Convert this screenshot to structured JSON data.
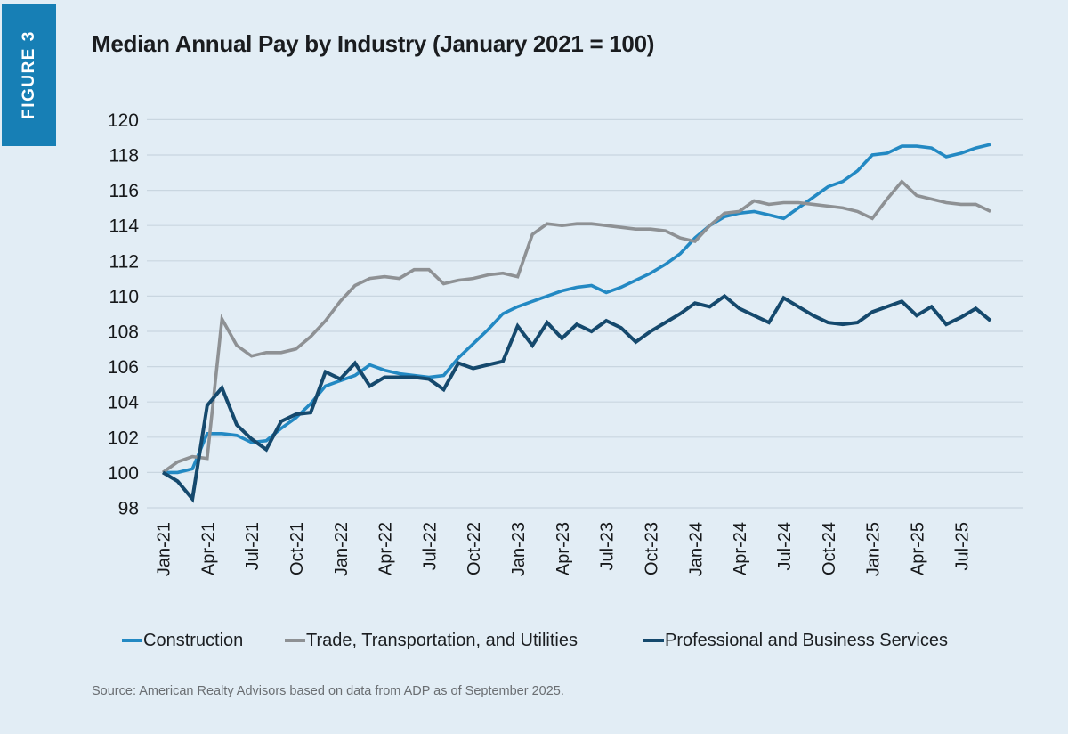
{
  "figure_label": "FIGURE 3",
  "title": "Median Annual Pay by Industry (January 2021 = 100)",
  "source": "Source: American Realty Advisors based on data from ADP as of September 2025.",
  "colors": {
    "background": "#e2edf5",
    "figure_badge": "#177fb5",
    "gridline": "#c9d6e0",
    "axis_text": "#17191b",
    "construction": "#2389c3",
    "trade": "#8e9194",
    "professional": "#15496d"
  },
  "chart_data": {
    "type": "line",
    "title": "Median Annual Pay by Industry (January 2021 = 100)",
    "xlabel": "",
    "ylabel": "",
    "ylim": [
      98,
      120
    ],
    "grid": true,
    "legend_position": "bottom",
    "y_ticks": [
      120,
      118,
      116,
      114,
      112,
      110,
      108,
      106,
      104,
      102,
      100,
      98
    ],
    "x_tick_labels": [
      "Jan-21",
      "Apr-21",
      "Jul-21",
      "Oct-21",
      "Jan-22",
      "Apr-22",
      "Jul-22",
      "Oct-22",
      "Jan-23",
      "Apr-23",
      "Jul-23",
      "Oct-23",
      "Jan-24",
      "Apr-24",
      "Jul-24",
      "Oct-24",
      "Jan-25",
      "Apr-25",
      "Jul-25"
    ],
    "x": [
      "Jan-21",
      "Feb-21",
      "Mar-21",
      "Apr-21",
      "May-21",
      "Jun-21",
      "Jul-21",
      "Aug-21",
      "Sep-21",
      "Oct-21",
      "Nov-21",
      "Dec-21",
      "Jan-22",
      "Feb-22",
      "Mar-22",
      "Apr-22",
      "May-22",
      "Jun-22",
      "Jul-22",
      "Aug-22",
      "Sep-22",
      "Oct-22",
      "Nov-22",
      "Dec-22",
      "Jan-23",
      "Feb-23",
      "Mar-23",
      "Apr-23",
      "May-23",
      "Jun-23",
      "Jul-23",
      "Aug-23",
      "Sep-23",
      "Oct-23",
      "Nov-23",
      "Dec-23",
      "Jan-24",
      "Feb-24",
      "Mar-24",
      "Apr-24",
      "May-24",
      "Jun-24",
      "Jul-24",
      "Aug-24",
      "Sep-24",
      "Oct-24",
      "Nov-24",
      "Dec-24",
      "Jan-25",
      "Feb-25",
      "Mar-25",
      "Apr-25",
      "May-25",
      "Jun-25",
      "Jul-25",
      "Aug-25",
      "Sep-25"
    ],
    "series": [
      {
        "name": "Construction",
        "color": "#2389c3",
        "stroke_width": 3.6,
        "values": [
          100.0,
          100.0,
          100.2,
          102.2,
          102.2,
          102.1,
          101.7,
          101.8,
          102.5,
          103.1,
          103.9,
          104.9,
          105.2,
          105.5,
          106.1,
          105.8,
          105.6,
          105.5,
          105.4,
          105.5,
          106.5,
          107.3,
          108.1,
          109.0,
          109.4,
          109.7,
          110.0,
          110.3,
          110.5,
          110.6,
          110.2,
          110.5,
          110.9,
          111.3,
          111.8,
          112.4,
          113.3,
          114.0,
          114.5,
          114.7,
          114.8,
          114.6,
          114.4,
          115.0,
          115.6,
          116.2,
          116.5,
          117.1,
          118.0,
          118.1,
          118.5,
          118.5,
          118.4,
          117.9,
          118.1,
          118.4,
          118.6
        ]
      },
      {
        "name": "Trade, Transportation, and Utilities",
        "color": "#8e9194",
        "stroke_width": 3.6,
        "values": [
          100.0,
          100.6,
          100.9,
          100.8,
          108.7,
          107.2,
          106.6,
          106.8,
          106.8,
          107.0,
          107.7,
          108.6,
          109.7,
          110.6,
          111.0,
          111.1,
          111.0,
          111.5,
          111.5,
          110.7,
          110.9,
          111.0,
          111.2,
          111.3,
          111.1,
          113.5,
          114.1,
          114.0,
          114.1,
          114.1,
          114.0,
          113.9,
          113.8,
          113.8,
          113.7,
          113.3,
          113.1,
          114.0,
          114.7,
          114.8,
          115.4,
          115.2,
          115.3,
          115.3,
          115.2,
          115.1,
          115.0,
          114.8,
          114.4,
          115.5,
          116.5,
          115.7,
          115.5,
          115.3,
          115.2,
          115.2,
          114.8
        ]
      },
      {
        "name": "Professional and Business Services",
        "color": "#15496d",
        "stroke_width": 4,
        "values": [
          100.0,
          99.5,
          98.5,
          103.8,
          104.8,
          102.7,
          101.9,
          101.3,
          102.9,
          103.3,
          103.4,
          105.7,
          105.3,
          106.2,
          104.9,
          105.4,
          105.4,
          105.4,
          105.3,
          104.7,
          106.2,
          105.9,
          106.1,
          106.3,
          108.3,
          107.2,
          108.5,
          107.6,
          108.4,
          108.0,
          108.6,
          108.2,
          107.4,
          108.0,
          108.5,
          109.0,
          109.6,
          109.4,
          110.0,
          109.3,
          108.9,
          108.5,
          109.9,
          109.4,
          108.9,
          108.5,
          108.4,
          108.5,
          109.1,
          109.4,
          109.7,
          108.9,
          109.4,
          108.4,
          108.8,
          109.3,
          108.6
        ]
      }
    ]
  },
  "legend": {
    "items": [
      {
        "label": "Construction"
      },
      {
        "label": "Trade, Transportation, and Utilities"
      },
      {
        "label": "Professional and Business Services"
      }
    ]
  }
}
